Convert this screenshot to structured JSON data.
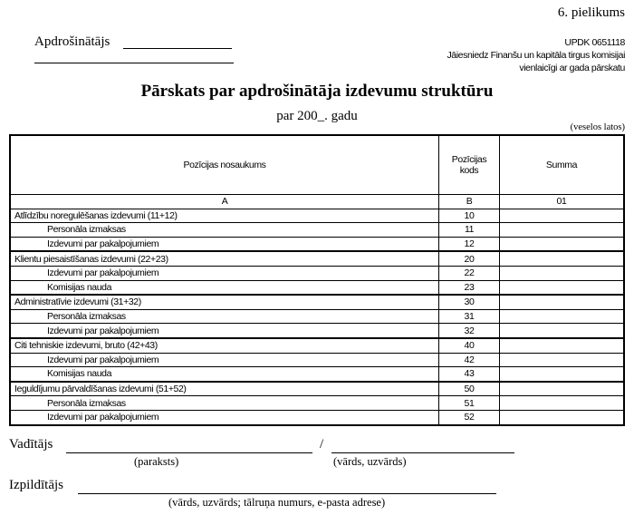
{
  "appendix": "6. pielikums",
  "insurer_label": "Apdrošinātājs",
  "form_code": "UPDK 0651118",
  "submit_note_1": "Jāiesniedz Finanšu un kapitāla tirgus komisijai",
  "submit_note_2": "vienlaicīgi ar gada pārskatu",
  "title": "Pārskats par apdrošinātāja izdevumu struktūru",
  "subtitle": "par 200_. gadu",
  "units": "(veselos latos)",
  "table": {
    "headers": [
      "Pozīcijas nosaukums",
      "Pozīcijas kods",
      "Summa"
    ],
    "header_code_1": "Pozīcijas",
    "header_code_2": "kods",
    "letters": [
      "A",
      "B",
      "01"
    ],
    "rows": [
      {
        "name": "Atlīdzību noregulēšanas izdevumi (11+12)",
        "code": "10",
        "sum": ""
      },
      {
        "name": "Personāla izmaksas",
        "code": "11",
        "sum": ""
      },
      {
        "name": "Izdevumi par pakalpojumiem",
        "code": "12",
        "sum": ""
      },
      {
        "name": "Klientu piesaistīšanas izdevumi (22+23)",
        "code": "20",
        "sum": ""
      },
      {
        "name": "Izdevumi par pakalpojumiem",
        "code": "22",
        "sum": ""
      },
      {
        "name": "Komisijas nauda",
        "code": "23",
        "sum": ""
      },
      {
        "name": "Administratīvie izdevumi (31+32)",
        "code": "30",
        "sum": ""
      },
      {
        "name": "Personāla izmaksas",
        "code": "31",
        "sum": ""
      },
      {
        "name": "Izdevumi par pakalpojumiem",
        "code": "32",
        "sum": ""
      },
      {
        "name": "Citi tehniskie izdevumi, bruto (42+43)",
        "code": "40",
        "sum": ""
      },
      {
        "name": "Izdevumi par pakalpojumiem",
        "code": "42",
        "sum": ""
      },
      {
        "name": "Komisijas nauda",
        "code": "43",
        "sum": ""
      },
      {
        "name": "Ieguldījumu pārvaldīšanas izdevumi (51+52)",
        "code": "50",
        "sum": ""
      },
      {
        "name": "Personāla izmaksas",
        "code": "51",
        "sum": ""
      },
      {
        "name": "Izdevumi par pakalpojumiem",
        "code": "52",
        "sum": ""
      }
    ]
  },
  "footer": {
    "head_label": "Vadītājs",
    "slash": "/",
    "signature_caption": "(paraksts)",
    "name_caption": "(vārds, uzvārds)",
    "executor_label": "Izpildītājs",
    "executor_caption": "(vārds, uzvārds; tālruņa numurs, e-pasta adrese)"
  }
}
